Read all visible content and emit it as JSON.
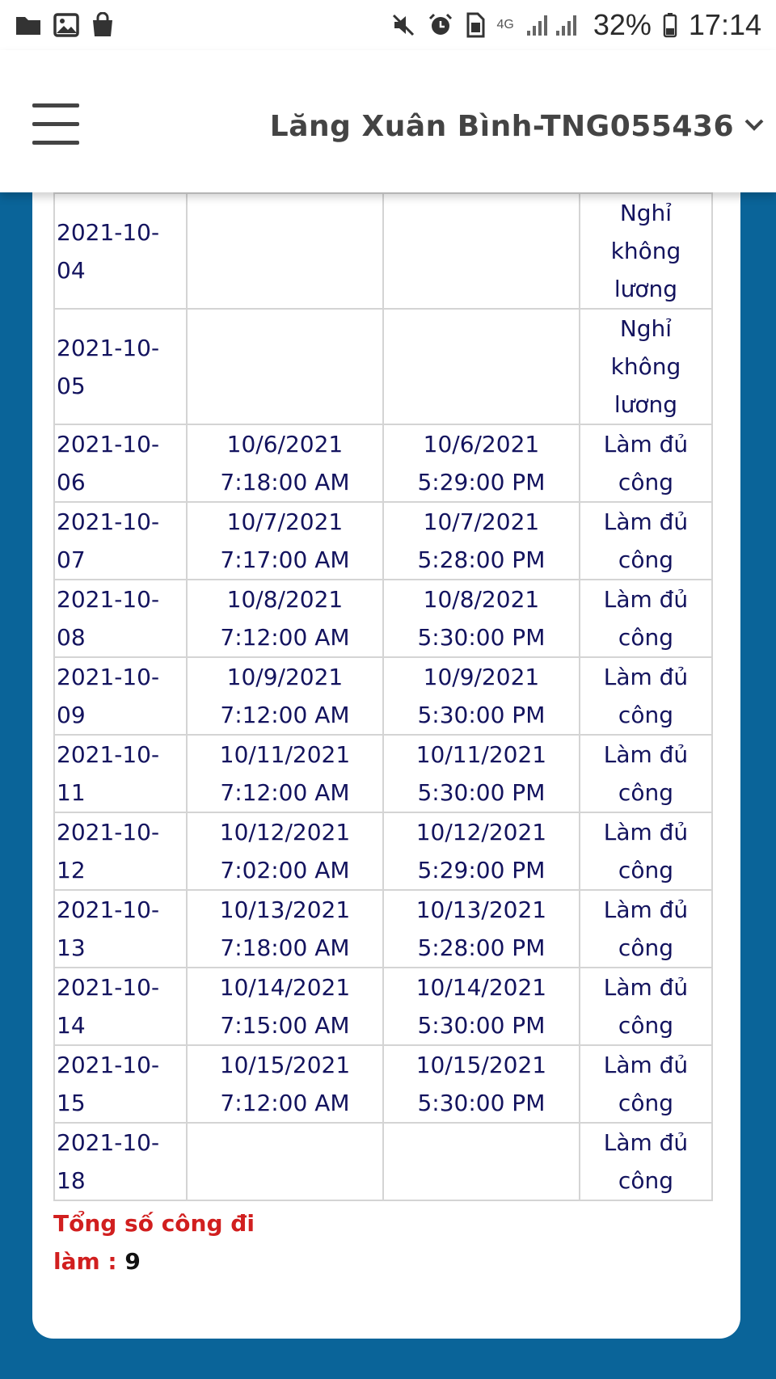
{
  "status_bar": {
    "network": "4G",
    "battery": "32%",
    "time": "17:14"
  },
  "header": {
    "user": "Lăng Xuân Bình-TNG055436"
  },
  "rows": [
    {
      "date": "2021-10-04",
      "in_date": "",
      "in_time": "",
      "out_date": "",
      "out_time": "",
      "status": [
        "Nghỉ",
        "không",
        "lương"
      ]
    },
    {
      "date": "2021-10-05",
      "in_date": "",
      "in_time": "",
      "out_date": "",
      "out_time": "",
      "status": [
        "Nghỉ",
        "không",
        "lương"
      ]
    },
    {
      "date": "2021-10-06",
      "in_date": "10/6/2021",
      "in_time": "7:18:00 AM",
      "out_date": "10/6/2021",
      "out_time": "5:29:00 PM",
      "status": [
        "Làm đủ",
        "công"
      ]
    },
    {
      "date": "2021-10-07",
      "in_date": "10/7/2021",
      "in_time": "7:17:00 AM",
      "out_date": "10/7/2021",
      "out_time": "5:28:00 PM",
      "status": [
        "Làm đủ",
        "công"
      ]
    },
    {
      "date": "2021-10-08",
      "in_date": "10/8/2021",
      "in_time": "7:12:00 AM",
      "out_date": "10/8/2021",
      "out_time": "5:30:00 PM",
      "status": [
        "Làm đủ",
        "công"
      ]
    },
    {
      "date": "2021-10-09",
      "in_date": "10/9/2021",
      "in_time": "7:12:00 AM",
      "out_date": "10/9/2021",
      "out_time": "5:30:00 PM",
      "status": [
        "Làm đủ",
        "công"
      ]
    },
    {
      "date": "2021-10-11",
      "in_date": "10/11/2021",
      "in_time": "7:12:00 AM",
      "out_date": "10/11/2021",
      "out_time": "5:30:00 PM",
      "status": [
        "Làm đủ",
        "công"
      ]
    },
    {
      "date": "2021-10-12",
      "in_date": "10/12/2021",
      "in_time": "7:02:00 AM",
      "out_date": "10/12/2021",
      "out_time": "5:29:00 PM",
      "status": [
        "Làm đủ",
        "công"
      ]
    },
    {
      "date": "2021-10-13",
      "in_date": "10/13/2021",
      "in_time": "7:18:00 AM",
      "out_date": "10/13/2021",
      "out_time": "5:28:00 PM",
      "status": [
        "Làm đủ",
        "công"
      ]
    },
    {
      "date": "2021-10-14",
      "in_date": "10/14/2021",
      "in_time": "7:15:00 AM",
      "out_date": "10/14/2021",
      "out_time": "5:30:00 PM",
      "status": [
        "Làm đủ",
        "công"
      ]
    },
    {
      "date": "2021-10-15",
      "in_date": "10/15/2021",
      "in_time": "7:12:00 AM",
      "out_date": "10/15/2021",
      "out_time": "5:30:00 PM",
      "status": [
        "Làm đủ",
        "công"
      ]
    },
    {
      "date": "2021-10-18",
      "in_date": "",
      "in_time": "",
      "out_date": "",
      "out_time": "",
      "status": [
        "Làm đủ",
        "công"
      ]
    }
  ],
  "total": {
    "label_line1": "Tổng số công đi",
    "label_line2": "làm :",
    "value": "9",
    "color": "#d11f1f"
  },
  "colors": {
    "background": "#0a6499",
    "table_text": "#13135e",
    "total_label": "#d11f1f"
  }
}
